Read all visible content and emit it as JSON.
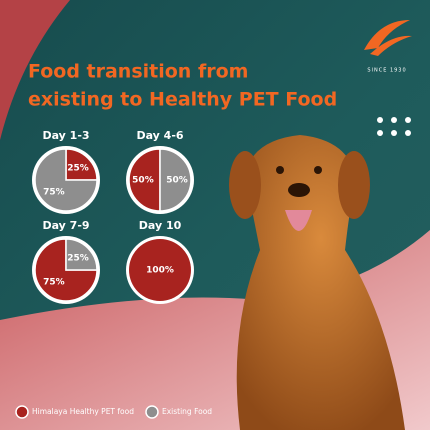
{
  "header": {
    "title_lines": [
      "Food transition from",
      "existing to Healthy PET Food"
    ],
    "brand": "SINCE 1930"
  },
  "legend": [
    {
      "name": "Himalaya Healthy PET food",
      "color": "#a8231f"
    },
    {
      "name": "Existing Food",
      "color": "#8e8e8e"
    }
  ],
  "chart_data": [
    {
      "type": "pie",
      "title": "Day 1-3",
      "values": [
        25,
        75
      ],
      "value_labels": [
        "25%",
        "75%"
      ]
    },
    {
      "type": "pie",
      "title": "Day 4-6",
      "values": [
        50,
        50
      ],
      "value_labels": [
        "50%",
        "50%"
      ]
    },
    {
      "type": "pie",
      "title": "Day 7-9",
      "values": [
        75,
        25
      ],
      "value_labels": [
        "75%",
        "25%"
      ]
    },
    {
      "type": "pie",
      "title": "Day 10",
      "values": [
        100
      ],
      "value_labels": [
        "100%"
      ]
    }
  ]
}
